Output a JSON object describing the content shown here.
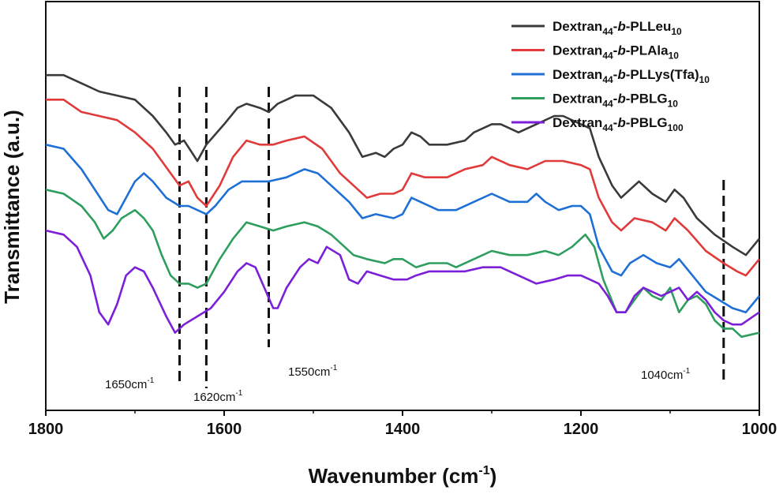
{
  "chart_data": {
    "type": "line",
    "title": "",
    "xlabel": "Wavenumber (cm",
    "xlabel_sup": "-1",
    "xlabel_suffix": ")",
    "ylabel": "Transmittance (a.u.)",
    "xlim": [
      1800,
      1000
    ],
    "x_reversed": true,
    "y_ticks_shown": false,
    "grid": false,
    "legend_position": "top-right",
    "x_ticks": [
      "1800",
      "1600",
      "1400",
      "1200",
      "1000"
    ],
    "legend": [
      {
        "base": "Dextran",
        "sub1": "44",
        "mid1": "-",
        "italic": "b",
        "mid2": "-PLLeu",
        "sub2": "10"
      },
      {
        "base": "Dextran",
        "sub1": "44",
        "mid1": "-",
        "italic": "b",
        "mid2": "-PLAla",
        "sub2": "10"
      },
      {
        "base": "Dextran",
        "sub1": "44",
        "mid1": "-",
        "italic": "b",
        "mid2": "-PLLys(Tfa)",
        "sub2": "10"
      },
      {
        "base": "Dextran",
        "sub1": "44",
        "mid1": "-",
        "italic": "b",
        "mid2": "-PBLG",
        "sub2": "10"
      },
      {
        "base": "Dextran",
        "sub1": "44",
        "mid1": "-",
        "italic": "b",
        "mid2": "-PBLG",
        "sub2": "100"
      }
    ],
    "annotations": [
      {
        "x": 1650,
        "text": "1650cm",
        "sup": "-1"
      },
      {
        "x": 1620,
        "text": "1620cm",
        "sup": "-1"
      },
      {
        "x": 1550,
        "text": "1550cm",
        "sup": "-1"
      },
      {
        "x": 1040,
        "text": "1040cm",
        "sup": "-1"
      }
    ],
    "y_axis_note": "arbitrary units (0 bottom of plot, 100 top of plot)",
    "series": [
      {
        "color": "#3a3a3a",
        "points": [
          [
            1800,
            82
          ],
          [
            1780,
            82
          ],
          [
            1760,
            80
          ],
          [
            1740,
            78
          ],
          [
            1720,
            77
          ],
          [
            1700,
            76
          ],
          [
            1680,
            72
          ],
          [
            1665,
            68
          ],
          [
            1655,
            65
          ],
          [
            1645,
            66
          ],
          [
            1630,
            61
          ],
          [
            1620,
            65
          ],
          [
            1600,
            70
          ],
          [
            1585,
            74
          ],
          [
            1575,
            75
          ],
          [
            1560,
            74
          ],
          [
            1550,
            73
          ],
          [
            1540,
            75
          ],
          [
            1520,
            77
          ],
          [
            1500,
            77
          ],
          [
            1480,
            74
          ],
          [
            1460,
            68
          ],
          [
            1445,
            62
          ],
          [
            1430,
            63
          ],
          [
            1420,
            62
          ],
          [
            1410,
            64
          ],
          [
            1400,
            65
          ],
          [
            1390,
            68
          ],
          [
            1380,
            67
          ],
          [
            1370,
            65
          ],
          [
            1350,
            65
          ],
          [
            1330,
            66
          ],
          [
            1320,
            68
          ],
          [
            1300,
            70
          ],
          [
            1290,
            70
          ],
          [
            1270,
            68
          ],
          [
            1250,
            70
          ],
          [
            1230,
            72
          ],
          [
            1220,
            72
          ],
          [
            1200,
            70
          ],
          [
            1190,
            69
          ],
          [
            1180,
            62
          ],
          [
            1165,
            55
          ],
          [
            1155,
            52
          ],
          [
            1145,
            54
          ],
          [
            1135,
            56
          ],
          [
            1120,
            53
          ],
          [
            1105,
            51
          ],
          [
            1095,
            54
          ],
          [
            1085,
            52
          ],
          [
            1070,
            47
          ],
          [
            1050,
            43
          ],
          [
            1030,
            40
          ],
          [
            1015,
            38
          ],
          [
            1000,
            42
          ]
        ]
      },
      {
        "color": "#e03a3a",
        "points": [
          [
            1800,
            76
          ],
          [
            1780,
            76
          ],
          [
            1760,
            73
          ],
          [
            1740,
            72
          ],
          [
            1720,
            71
          ],
          [
            1700,
            68
          ],
          [
            1680,
            64
          ],
          [
            1660,
            58
          ],
          [
            1650,
            55
          ],
          [
            1640,
            56
          ],
          [
            1630,
            52
          ],
          [
            1620,
            50
          ],
          [
            1605,
            55
          ],
          [
            1590,
            62
          ],
          [
            1575,
            66
          ],
          [
            1560,
            65
          ],
          [
            1545,
            65
          ],
          [
            1530,
            66
          ],
          [
            1510,
            67
          ],
          [
            1490,
            64
          ],
          [
            1470,
            58
          ],
          [
            1455,
            55
          ],
          [
            1440,
            52
          ],
          [
            1425,
            53
          ],
          [
            1410,
            53
          ],
          [
            1400,
            54
          ],
          [
            1390,
            58
          ],
          [
            1375,
            57
          ],
          [
            1350,
            57
          ],
          [
            1330,
            59
          ],
          [
            1310,
            60
          ],
          [
            1300,
            62
          ],
          [
            1280,
            60
          ],
          [
            1260,
            59
          ],
          [
            1240,
            61
          ],
          [
            1220,
            61
          ],
          [
            1200,
            60
          ],
          [
            1190,
            59
          ],
          [
            1180,
            52
          ],
          [
            1165,
            46
          ],
          [
            1155,
            44
          ],
          [
            1140,
            47
          ],
          [
            1120,
            46
          ],
          [
            1105,
            44
          ],
          [
            1095,
            47
          ],
          [
            1080,
            44
          ],
          [
            1060,
            39
          ],
          [
            1040,
            36
          ],
          [
            1025,
            34
          ],
          [
            1015,
            33
          ],
          [
            1000,
            37
          ]
        ]
      },
      {
        "color": "#1e6fd6",
        "points": [
          [
            1800,
            65
          ],
          [
            1780,
            64
          ],
          [
            1760,
            59
          ],
          [
            1745,
            54
          ],
          [
            1730,
            49
          ],
          [
            1720,
            48
          ],
          [
            1710,
            52
          ],
          [
            1700,
            56
          ],
          [
            1690,
            58
          ],
          [
            1680,
            56
          ],
          [
            1665,
            52
          ],
          [
            1650,
            50
          ],
          [
            1640,
            50
          ],
          [
            1630,
            49
          ],
          [
            1620,
            48
          ],
          [
            1610,
            50
          ],
          [
            1595,
            54
          ],
          [
            1580,
            56
          ],
          [
            1565,
            56
          ],
          [
            1550,
            56
          ],
          [
            1530,
            57
          ],
          [
            1510,
            59
          ],
          [
            1495,
            58
          ],
          [
            1480,
            55
          ],
          [
            1460,
            51
          ],
          [
            1445,
            47
          ],
          [
            1430,
            48
          ],
          [
            1410,
            47
          ],
          [
            1400,
            48
          ],
          [
            1390,
            52
          ],
          [
            1380,
            51
          ],
          [
            1360,
            49
          ],
          [
            1340,
            49
          ],
          [
            1320,
            51
          ],
          [
            1300,
            53
          ],
          [
            1280,
            51
          ],
          [
            1260,
            51
          ],
          [
            1250,
            53
          ],
          [
            1240,
            51
          ],
          [
            1225,
            49
          ],
          [
            1210,
            50
          ],
          [
            1200,
            50
          ],
          [
            1190,
            48
          ],
          [
            1180,
            40
          ],
          [
            1165,
            34
          ],
          [
            1155,
            33
          ],
          [
            1145,
            36
          ],
          [
            1130,
            38
          ],
          [
            1115,
            36
          ],
          [
            1100,
            35
          ],
          [
            1090,
            37
          ],
          [
            1075,
            33
          ],
          [
            1060,
            29
          ],
          [
            1045,
            27
          ],
          [
            1030,
            25
          ],
          [
            1015,
            24
          ],
          [
            1000,
            28
          ]
        ]
      },
      {
        "color": "#2e9e5e",
        "points": [
          [
            1800,
            54
          ],
          [
            1780,
            53
          ],
          [
            1760,
            50
          ],
          [
            1745,
            46
          ],
          [
            1735,
            42
          ],
          [
            1725,
            44
          ],
          [
            1715,
            47
          ],
          [
            1700,
            49
          ],
          [
            1690,
            47
          ],
          [
            1680,
            44
          ],
          [
            1670,
            38
          ],
          [
            1660,
            33
          ],
          [
            1650,
            31
          ],
          [
            1640,
            31
          ],
          [
            1630,
            30
          ],
          [
            1620,
            31
          ],
          [
            1605,
            37
          ],
          [
            1590,
            42
          ],
          [
            1575,
            46
          ],
          [
            1560,
            45
          ],
          [
            1545,
            44
          ],
          [
            1530,
            45
          ],
          [
            1510,
            46
          ],
          [
            1495,
            45
          ],
          [
            1480,
            43
          ],
          [
            1465,
            40
          ],
          [
            1455,
            38
          ],
          [
            1440,
            37
          ],
          [
            1420,
            36
          ],
          [
            1410,
            37
          ],
          [
            1400,
            37
          ],
          [
            1385,
            35
          ],
          [
            1370,
            36
          ],
          [
            1350,
            36
          ],
          [
            1340,
            35
          ],
          [
            1320,
            37
          ],
          [
            1300,
            39
          ],
          [
            1280,
            38
          ],
          [
            1260,
            38
          ],
          [
            1240,
            39
          ],
          [
            1225,
            38
          ],
          [
            1210,
            40
          ],
          [
            1195,
            43
          ],
          [
            1185,
            40
          ],
          [
            1175,
            32
          ],
          [
            1160,
            24
          ],
          [
            1150,
            24
          ],
          [
            1140,
            27
          ],
          [
            1130,
            30
          ],
          [
            1120,
            28
          ],
          [
            1110,
            27
          ],
          [
            1100,
            30
          ],
          [
            1090,
            24
          ],
          [
            1080,
            27
          ],
          [
            1070,
            28
          ],
          [
            1060,
            26
          ],
          [
            1050,
            22
          ],
          [
            1040,
            20
          ],
          [
            1030,
            20
          ],
          [
            1020,
            18
          ],
          [
            1000,
            19
          ]
        ]
      },
      {
        "color": "#7b1fd8",
        "points": [
          [
            1800,
            44
          ],
          [
            1780,
            43
          ],
          [
            1765,
            40
          ],
          [
            1750,
            33
          ],
          [
            1740,
            24
          ],
          [
            1730,
            21
          ],
          [
            1720,
            26
          ],
          [
            1710,
            33
          ],
          [
            1700,
            35
          ],
          [
            1690,
            34
          ],
          [
            1680,
            30
          ],
          [
            1665,
            23
          ],
          [
            1655,
            19
          ],
          [
            1645,
            21
          ],
          [
            1630,
            23
          ],
          [
            1615,
            25
          ],
          [
            1600,
            29
          ],
          [
            1585,
            34
          ],
          [
            1575,
            36
          ],
          [
            1565,
            35
          ],
          [
            1555,
            30
          ],
          [
            1545,
            25
          ],
          [
            1540,
            25
          ],
          [
            1530,
            30
          ],
          [
            1515,
            35
          ],
          [
            1505,
            37
          ],
          [
            1495,
            36
          ],
          [
            1485,
            40
          ],
          [
            1470,
            38
          ],
          [
            1460,
            32
          ],
          [
            1450,
            31
          ],
          [
            1440,
            34
          ],
          [
            1425,
            33
          ],
          [
            1410,
            32
          ],
          [
            1395,
            32
          ],
          [
            1385,
            33
          ],
          [
            1370,
            34
          ],
          [
            1350,
            34
          ],
          [
            1330,
            34
          ],
          [
            1310,
            35
          ],
          [
            1290,
            35
          ],
          [
            1270,
            33
          ],
          [
            1250,
            31
          ],
          [
            1230,
            32
          ],
          [
            1215,
            33
          ],
          [
            1200,
            33
          ],
          [
            1190,
            32
          ],
          [
            1180,
            31
          ],
          [
            1170,
            28
          ],
          [
            1160,
            24
          ],
          [
            1150,
            24
          ],
          [
            1140,
            28
          ],
          [
            1130,
            30
          ],
          [
            1120,
            29
          ],
          [
            1110,
            28
          ],
          [
            1100,
            29
          ],
          [
            1090,
            30
          ],
          [
            1080,
            27
          ],
          [
            1070,
            29
          ],
          [
            1060,
            27
          ],
          [
            1050,
            24
          ],
          [
            1040,
            22
          ],
          [
            1030,
            21
          ],
          [
            1020,
            21
          ],
          [
            1000,
            24
          ]
        ]
      }
    ]
  }
}
